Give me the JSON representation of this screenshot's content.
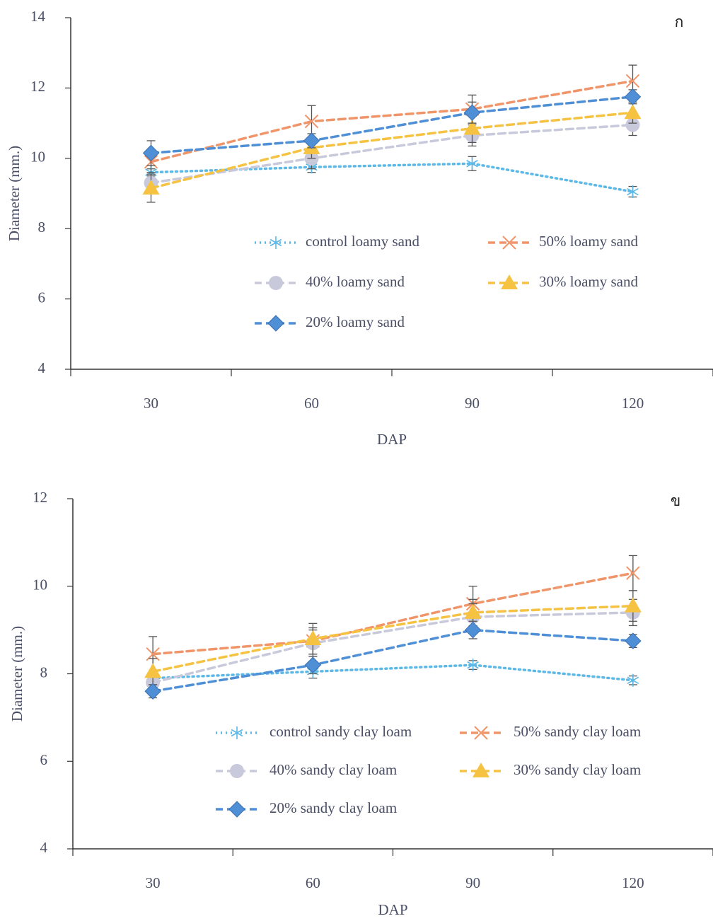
{
  "chart_data": [
    {
      "type": "line",
      "panel_label": "ก",
      "x_label": "DAP",
      "y_label": "Diameter (mm.)",
      "categories": [
        "30",
        "60",
        "90",
        "120"
      ],
      "ylim": [
        4,
        14
      ],
      "yticks": [
        4,
        6,
        8,
        10,
        12,
        14
      ],
      "series": [
        {
          "name": "control loamy sand",
          "color": "#5cb8e6",
          "marker": "asterisk",
          "dash": "dotted",
          "values": [
            9.6,
            9.75,
            9.85,
            9.05
          ],
          "errors": [
            0.1,
            0.15,
            0.2,
            0.15
          ]
        },
        {
          "name": "50% loamy sand",
          "color": "#f0956a",
          "marker": "x",
          "dash": "dashed",
          "values": [
            9.9,
            11.05,
            11.4,
            12.2
          ],
          "errors": [
            0.3,
            0.45,
            0.4,
            0.45
          ]
        },
        {
          "name": "40% loamy sand",
          "color": "#c9c9dc",
          "marker": "circle",
          "dash": "dashed",
          "values": [
            9.3,
            10.0,
            10.65,
            10.95
          ],
          "errors": [
            0.2,
            0.3,
            0.3,
            0.3
          ]
        },
        {
          "name": "30% loamy sand",
          "color": "#f5c242",
          "marker": "triangle",
          "dash": "dashed",
          "values": [
            9.15,
            10.3,
            10.85,
            11.3
          ],
          "errors": [
            0.4,
            0.3,
            0.4,
            0.3
          ]
        },
        {
          "name": "20% loamy sand",
          "color": "#4f8fd6",
          "marker": "diamond",
          "dash": "dashed",
          "values": [
            10.15,
            10.5,
            11.3,
            11.75
          ],
          "errors": [
            0.35,
            0.2,
            0.3,
            0.2
          ]
        }
      ]
    },
    {
      "type": "line",
      "panel_label": "ข",
      "x_label": "DAP",
      "y_label": "Diameter (mm.)",
      "categories": [
        "30",
        "60",
        "90",
        "120"
      ],
      "ylim": [
        4,
        12
      ],
      "yticks": [
        4,
        6,
        8,
        10,
        12
      ],
      "series": [
        {
          "name": "control sandy clay loam",
          "color": "#5cb8e6",
          "marker": "asterisk",
          "dash": "dotted",
          "values": [
            7.9,
            8.05,
            8.2,
            7.85
          ],
          "errors": [
            0.1,
            0.15,
            0.1,
            0.1
          ]
        },
        {
          "name": "50% sandy clay loam",
          "color": "#f0956a",
          "marker": "x",
          "dash": "dashed",
          "values": [
            8.45,
            8.75,
            9.6,
            10.3
          ],
          "errors": [
            0.4,
            0.3,
            0.4,
            0.4
          ]
        },
        {
          "name": "40% sandy clay loam",
          "color": "#c9c9dc",
          "marker": "circle",
          "dash": "dashed",
          "values": [
            7.8,
            8.7,
            9.3,
            9.4
          ],
          "errors": [
            0.2,
            0.3,
            0.3,
            0.3
          ]
        },
        {
          "name": "30% sandy clay loam",
          "color": "#f5c242",
          "marker": "triangle",
          "dash": "dashed",
          "values": [
            8.05,
            8.8,
            9.4,
            9.55
          ],
          "errors": [
            0.3,
            0.35,
            0.3,
            0.35
          ]
        },
        {
          "name": "20% sandy clay loam",
          "color": "#4f8fd6",
          "marker": "diamond",
          "dash": "dashed",
          "values": [
            7.6,
            8.2,
            9.0,
            8.75
          ],
          "errors": [
            0.15,
            0.2,
            0.2,
            0.15
          ]
        }
      ]
    }
  ]
}
